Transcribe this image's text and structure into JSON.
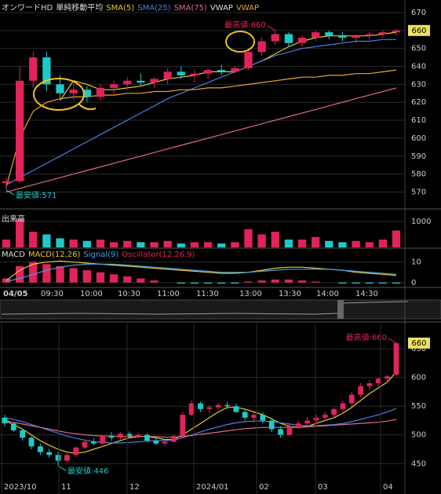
{
  "chart_data": [
    {
      "type": "candlestick",
      "title": "オンワードHD",
      "subtitle": "単純移動平均",
      "indicator": "VWAP",
      "open": [
        575,
        576,
        632,
        645,
        630,
        625,
        627,
        623,
        628,
        630,
        632,
        631,
        633,
        637,
        635,
        636,
        638,
        637,
        639,
        648,
        654,
        658,
        653,
        656,
        659,
        657,
        656,
        657,
        658,
        659
      ],
      "high": [
        578,
        640,
        648,
        648,
        635,
        630,
        629,
        630,
        632,
        634,
        636,
        634,
        639,
        640,
        638,
        639,
        641,
        640,
        650,
        656,
        660,
        659,
        657,
        660,
        660,
        659,
        658,
        659,
        660,
        661
      ],
      "low": [
        571,
        575,
        628,
        626,
        622,
        621,
        620,
        621,
        625,
        627,
        629,
        628,
        630,
        633,
        631,
        633,
        635,
        636,
        638,
        646,
        652,
        651,
        651,
        654,
        655,
        654,
        653,
        655,
        656,
        657
      ],
      "close": [
        576,
        632,
        645,
        630,
        625,
        627,
        623,
        628,
        630,
        632,
        631,
        633,
        637,
        635,
        636,
        638,
        637,
        639,
        648,
        654,
        658,
        653,
        656,
        659,
        657,
        656,
        657,
        658,
        659,
        660
      ],
      "up_color": "#e0245a",
      "down_color": "#20c8c8",
      "series": [
        {
          "name": "SMA(5)",
          "color": "#e8c830",
          "values": [
            null,
            null,
            null,
            null,
            621,
            632,
            630,
            627,
            627,
            628,
            629,
            631,
            633,
            634,
            635,
            637,
            637,
            637,
            640,
            643,
            647,
            651,
            654,
            656,
            657,
            657,
            657,
            657,
            658,
            659
          ]
        },
        {
          "name": "SMA(25)",
          "color": "#4a7fe0",
          "values": [
            574,
            578,
            582,
            586,
            590,
            594,
            598,
            602,
            606,
            610,
            614,
            618,
            622,
            625,
            628,
            631,
            634,
            637,
            640,
            643,
            646,
            648,
            650,
            651,
            652,
            653,
            654,
            654,
            655,
            655
          ]
        },
        {
          "name": "SMA(75)",
          "color": "#e06a8a",
          "values": [
            570,
            572,
            574,
            576,
            578,
            580,
            582,
            584,
            586,
            588,
            590,
            592,
            594,
            596,
            598,
            600,
            602,
            604,
            606,
            608,
            610,
            612,
            614,
            616,
            618,
            620,
            622,
            624,
            626,
            628
          ]
        },
        {
          "name": "VWAP",
          "color": "#f0a030",
          "values": [
            573,
            600,
            615,
            620,
            622,
            623,
            623,
            624,
            624,
            625,
            625,
            626,
            626,
            627,
            627,
            628,
            628,
            629,
            630,
            631,
            632,
            633,
            634,
            634,
            635,
            635,
            636,
            636,
            637,
            638
          ]
        }
      ],
      "annotations": [
        {
          "text": "最高値:660",
          "value": 660,
          "kind": "high"
        },
        {
          "text": "最安値:571",
          "value": 571,
          "kind": "low"
        }
      ],
      "last_price": 660,
      "ylim": [
        561,
        677
      ],
      "yticks": [
        570,
        580,
        590,
        600,
        610,
        620,
        630,
        640,
        650,
        660,
        670
      ],
      "grid": true
    },
    {
      "type": "volume",
      "title": "出来高",
      "values": [
        300,
        1100,
        600,
        500,
        350,
        300,
        250,
        300,
        200,
        250,
        200,
        200,
        250,
        150,
        200,
        200,
        150,
        200,
        700,
        500,
        600,
        300,
        300,
        400,
        250,
        200,
        250,
        200,
        300,
        650
      ],
      "ylim": [
        0,
        1420
      ],
      "yticks": [
        1000
      ],
      "grid": true
    },
    {
      "type": "macd",
      "title": "MACD",
      "oscillator": [
        2,
        8,
        10,
        9,
        8,
        7,
        6,
        5,
        4,
        3,
        2,
        1,
        0,
        -0.5,
        -0.5,
        -0.5,
        -0.5,
        -0.5,
        0.5,
        1,
        1.5,
        1.5,
        1,
        0.5,
        0,
        -0.5,
        -0.5,
        -0.5,
        -0.5,
        -0.5
      ],
      "oscillator_name": "Oscillator(12,26,9)",
      "oscillator_color": "#e0245a",
      "series": [
        {
          "name": "MACD(12,26)",
          "color": "#e8c830",
          "values": [
            1,
            6,
            9,
            10,
            10.5,
            10,
            9.5,
            9,
            8.5,
            8,
            7.5,
            7,
            6.5,
            6,
            5.5,
            5,
            4.5,
            4.5,
            5,
            6,
            7,
            7.5,
            7.5,
            7,
            6.5,
            6,
            5,
            4.5,
            4,
            3.5
          ]
        },
        {
          "name": "Signal(9)",
          "color": "#4a9fe0",
          "values": [
            0.5,
            2,
            4,
            6,
            7.5,
            8.5,
            9,
            9,
            9,
            8.5,
            8,
            7.5,
            7,
            6.5,
            6,
            5.5,
            5,
            5,
            5,
            5.5,
            6,
            6.5,
            6.5,
            6.5,
            6.5,
            6,
            5.5,
            5,
            4.5,
            4
          ]
        }
      ],
      "time_labels": [
        "04/05",
        "09:30",
        "10:00",
        "10:30",
        "11:00",
        "11:30",
        "13:00",
        "13:30",
        "14:00",
        "14:30"
      ],
      "ylim": [
        -2,
        16
      ],
      "yticks": [
        0,
        10
      ],
      "grid": true
    },
    {
      "type": "candlestick",
      "open": [
        530,
        520,
        508,
        495,
        480,
        470,
        465,
        455,
        465,
        478,
        488,
        485,
        498,
        495,
        502,
        498,
        500,
        490,
        485,
        488,
        498,
        535,
        555,
        545,
        548,
        552,
        550,
        540,
        530,
        535,
        525,
        510,
        500,
        515,
        520,
        525,
        530,
        535,
        545,
        555,
        570,
        585,
        590,
        598,
        605
      ],
      "high": [
        535,
        522,
        510,
        498,
        485,
        476,
        470,
        468,
        480,
        490,
        495,
        500,
        505,
        505,
        506,
        504,
        503,
        495,
        492,
        500,
        540,
        560,
        558,
        552,
        556,
        558,
        555,
        545,
        538,
        540,
        530,
        515,
        520,
        525,
        530,
        535,
        540,
        548,
        560,
        575,
        590,
        595,
        600,
        605,
        660
      ],
      "low": [
        515,
        505,
        490,
        475,
        465,
        460,
        446,
        452,
        462,
        475,
        482,
        483,
        490,
        492,
        495,
        494,
        488,
        482,
        480,
        486,
        496,
        532,
        540,
        538,
        544,
        545,
        538,
        525,
        522,
        520,
        505,
        495,
        498,
        510,
        515,
        520,
        525,
        530,
        540,
        550,
        565,
        578,
        585,
        590,
        603
      ],
      "close": [
        520,
        508,
        495,
        480,
        470,
        465,
        455,
        465,
        478,
        488,
        485,
        498,
        495,
        502,
        498,
        500,
        490,
        485,
        488,
        498,
        535,
        555,
        545,
        548,
        552,
        550,
        540,
        530,
        535,
        525,
        510,
        500,
        515,
        520,
        525,
        530,
        535,
        545,
        555,
        570,
        585,
        590,
        598,
        602,
        660
      ],
      "up_color": "#e0245a",
      "down_color": "#20c8c8",
      "series": [
        {
          "color": "#e8c830",
          "values": [
            525,
            518,
            510,
            500,
            490,
            482,
            475,
            470,
            468,
            470,
            475,
            480,
            485,
            490,
            495,
            497,
            497,
            495,
            492,
            492,
            500,
            510,
            520,
            530,
            540,
            548,
            548,
            545,
            540,
            535,
            528,
            520,
            515,
            513,
            515,
            520,
            525,
            530,
            538,
            548,
            560,
            572,
            582,
            592,
            610
          ]
        },
        {
          "color": "#4a7fe0",
          "values": [
            530,
            527,
            523,
            518,
            513,
            508,
            503,
            498,
            494,
            491,
            488,
            487,
            486,
            486,
            487,
            488,
            489,
            490,
            490,
            491,
            495,
            500,
            505,
            510,
            514,
            518,
            521,
            523,
            524,
            524,
            523,
            521,
            519,
            517,
            516,
            516,
            517,
            518,
            520,
            523,
            527,
            531,
            535,
            540,
            546
          ]
        },
        {
          "color": "#e06a8a",
          "values": [
            525,
            522,
            519,
            516,
            513,
            510,
            507,
            504,
            502,
            500,
            499,
            498,
            498,
            497,
            497,
            497,
            497,
            497,
            496,
            496,
            497,
            499,
            501,
            503,
            505,
            507,
            509,
            511,
            512,
            513,
            513,
            513,
            513,
            513,
            514,
            515,
            516,
            517,
            518,
            519,
            520,
            521,
            522,
            524,
            527
          ]
        }
      ],
      "annotations": [
        {
          "text": "最高値:660",
          "value": 660,
          "kind": "high"
        },
        {
          "text": "最安値:446",
          "value": 446,
          "kind": "low"
        }
      ],
      "x_labels": [
        "2023/10",
        "11",
        "12",
        "2024/01",
        "02",
        "03",
        "04"
      ],
      "last_price": 660,
      "ylim": [
        397,
        694
      ],
      "yticks": [
        450,
        500,
        550,
        600,
        650
      ],
      "grid": true
    }
  ]
}
